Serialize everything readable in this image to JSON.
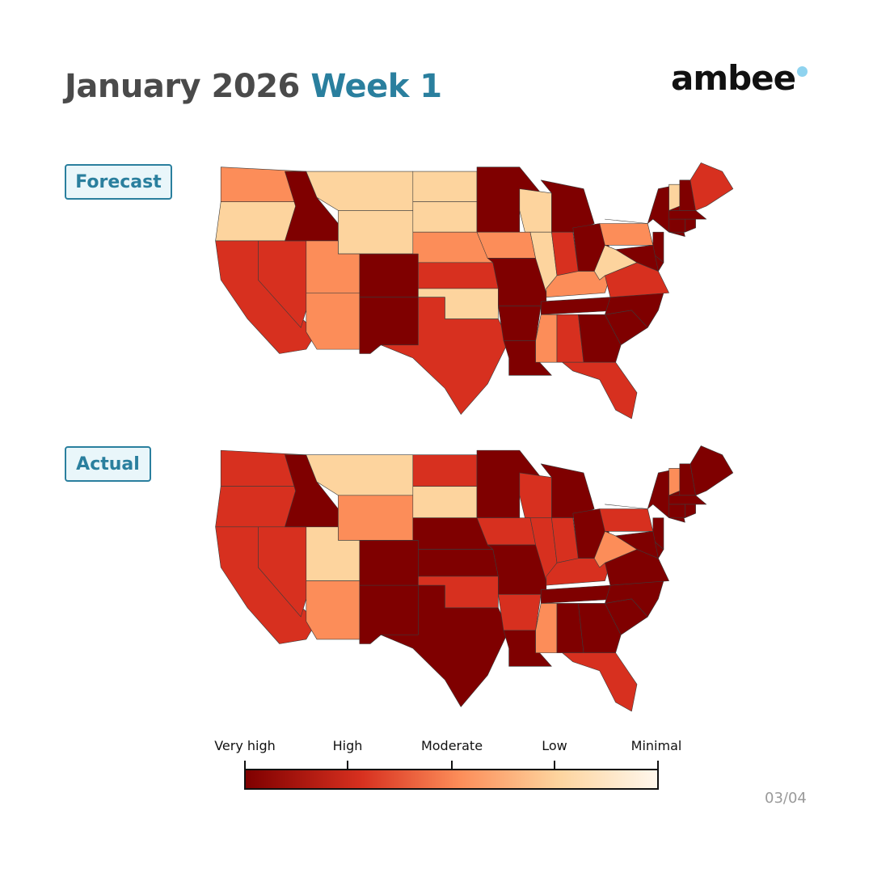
{
  "header": {
    "title_main": "January 2026",
    "title_week": "Week 1",
    "logo_text": "ambee",
    "logo_dot_color": "#8fd3ef"
  },
  "maps": {
    "forecast_label": "Forecast",
    "actual_label": "Actual"
  },
  "legend": {
    "labels": [
      "Very high",
      "High",
      "Moderate",
      "Low",
      "Minimal"
    ],
    "colors": {
      "very_high": "#7f0000",
      "high": "#d7301f",
      "moderate": "#fc8d59",
      "low": "#fdd49e",
      "minimal": "#fff7ec"
    }
  },
  "state_levels": {
    "forecast": {
      "WA": "moderate",
      "OR": "low",
      "CA": "high",
      "NV": "high",
      "ID": "very_high",
      "MT": "low",
      "WY": "low",
      "UT": "moderate",
      "AZ": "moderate",
      "CO": "very_high",
      "NM": "very_high",
      "ND": "low",
      "SD": "low",
      "NE": "moderate",
      "KS": "high",
      "OK": "low",
      "TX": "high",
      "MN": "very_high",
      "IA": "moderate",
      "MO": "very_high",
      "AR": "very_high",
      "LA": "very_high",
      "WI": "low",
      "IL": "low",
      "MI": "very_high",
      "IN": "high",
      "OH": "very_high",
      "KY": "moderate",
      "TN": "very_high",
      "MS": "moderate",
      "AL": "high",
      "GA": "very_high",
      "FL": "high",
      "SC": "very_high",
      "NC": "very_high",
      "VA": "high",
      "WV": "low",
      "PA": "moderate",
      "NY": "very_high",
      "VT": "low",
      "NH": "very_high",
      "ME": "high",
      "MA": "very_high",
      "CT": "very_high",
      "RI": "very_high",
      "NJ": "very_high",
      "DE": "very_high",
      "MD": "very_high"
    },
    "actual": {
      "WA": "high",
      "OR": "high",
      "CA": "high",
      "NV": "high",
      "ID": "very_high",
      "MT": "low",
      "WY": "moderate",
      "UT": "low",
      "AZ": "moderate",
      "CO": "very_high",
      "NM": "very_high",
      "ND": "high",
      "SD": "low",
      "NE": "very_high",
      "KS": "very_high",
      "OK": "high",
      "TX": "very_high",
      "MN": "very_high",
      "IA": "high",
      "MO": "very_high",
      "AR": "high",
      "LA": "very_high",
      "WI": "high",
      "IL": "high",
      "MI": "very_high",
      "IN": "high",
      "OH": "very_high",
      "KY": "high",
      "TN": "very_high",
      "MS": "moderate",
      "AL": "very_high",
      "GA": "very_high",
      "FL": "high",
      "SC": "very_high",
      "NC": "very_high",
      "VA": "very_high",
      "WV": "moderate",
      "PA": "high",
      "NY": "very_high",
      "VT": "moderate",
      "NH": "very_high",
      "ME": "very_high",
      "MA": "very_high",
      "CT": "very_high",
      "RI": "very_high",
      "NJ": "very_high",
      "DE": "very_high",
      "MD": "very_high"
    }
  },
  "footer": {
    "page_indicator": "03/04"
  }
}
